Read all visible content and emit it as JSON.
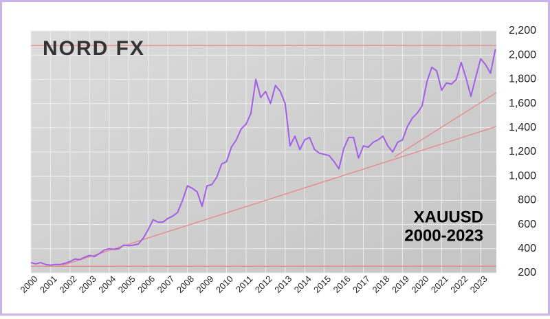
{
  "chart_data": {
    "type": "line",
    "logo": "NORD FX",
    "annotations": [
      "XAUUSD",
      "2000-2023"
    ],
    "x": [
      2000,
      2000.25,
      2000.5,
      2000.75,
      2001,
      2001.25,
      2001.5,
      2001.75,
      2002,
      2002.25,
      2002.5,
      2002.75,
      2003,
      2003.25,
      2003.5,
      2003.75,
      2004,
      2004.25,
      2004.5,
      2004.75,
      2005,
      2005.25,
      2005.5,
      2005.75,
      2006,
      2006.25,
      2006.5,
      2006.75,
      2007,
      2007.25,
      2007.5,
      2007.75,
      2008,
      2008.25,
      2008.5,
      2008.75,
      2009,
      2009.25,
      2009.5,
      2009.75,
      2010,
      2010.25,
      2010.5,
      2010.75,
      2011,
      2011.25,
      2011.5,
      2011.75,
      2012,
      2012.25,
      2012.5,
      2012.75,
      2013,
      2013.25,
      2013.5,
      2013.75,
      2014,
      2014.25,
      2014.5,
      2014.75,
      2015,
      2015.25,
      2015.5,
      2015.75,
      2016,
      2016.25,
      2016.5,
      2016.75,
      2017,
      2017.25,
      2017.5,
      2017.75,
      2018,
      2018.25,
      2018.5,
      2018.75,
      2019,
      2019.25,
      2019.5,
      2019.75,
      2020,
      2020.25,
      2020.5,
      2020.75,
      2021,
      2021.25,
      2021.5,
      2021.75,
      2022,
      2022.25,
      2022.5,
      2022.75,
      2023,
      2023.25,
      2023.5,
      2023.75
    ],
    "series": [
      {
        "color": "#a35ee8",
        "values": [
          285,
          275,
          285,
          270,
          265,
          270,
          270,
          280,
          295,
          315,
          310,
          330,
          345,
          335,
          360,
          390,
          400,
          395,
          400,
          430,
          425,
          430,
          440,
          490,
          560,
          640,
          620,
          620,
          650,
          670,
          700,
          800,
          920,
          900,
          870,
          750,
          920,
          930,
          990,
          1100,
          1120,
          1240,
          1300,
          1390,
          1430,
          1520,
          1800,
          1650,
          1700,
          1600,
          1750,
          1700,
          1600,
          1250,
          1330,
          1220,
          1300,
          1320,
          1220,
          1190,
          1180,
          1170,
          1120,
          1060,
          1230,
          1320,
          1320,
          1150,
          1250,
          1240,
          1280,
          1300,
          1330,
          1250,
          1200,
          1280,
          1300,
          1410,
          1480,
          1520,
          1580,
          1780,
          1900,
          1870,
          1710,
          1770,
          1760,
          1800,
          1940,
          1810,
          1660,
          1820,
          1970,
          1920,
          1850,
          2050
        ]
      }
    ],
    "xlim": [
      2000,
      2023.8
    ],
    "xticks": [
      2000,
      2001,
      2002,
      2003,
      2004,
      2005,
      2006,
      2007,
      2008,
      2009,
      2010,
      2011,
      2012,
      2013,
      2014,
      2015,
      2016,
      2017,
      2018,
      2019,
      2020,
      2021,
      2022,
      2023
    ],
    "ylim": [
      200,
      2200
    ],
    "yticks": [
      200,
      400,
      600,
      800,
      {
        "value": 1000,
        "label": "1,000"
      },
      {
        "value": 1200,
        "label": "1,200"
      },
      {
        "value": 1400,
        "label": "1,400"
      },
      {
        "value": 1600,
        "label": "1,600"
      },
      {
        "value": 1800,
        "label": "1,800"
      },
      {
        "value": 2000,
        "label": "2,000"
      },
      {
        "value": 2200,
        "label": "2,200"
      }
    ],
    "grid": true,
    "reference_lines": [
      {
        "y": 2080
      },
      {
        "y": 255
      }
    ],
    "trend_lines": [
      {
        "x": [
          2001.6,
          2023.8
        ],
        "y": [
          262,
          1410
        ]
      },
      {
        "x": [
          2018.6,
          2023.8
        ],
        "y": [
          1160,
          1690
        ]
      }
    ],
    "reference_color": "#e98585"
  }
}
